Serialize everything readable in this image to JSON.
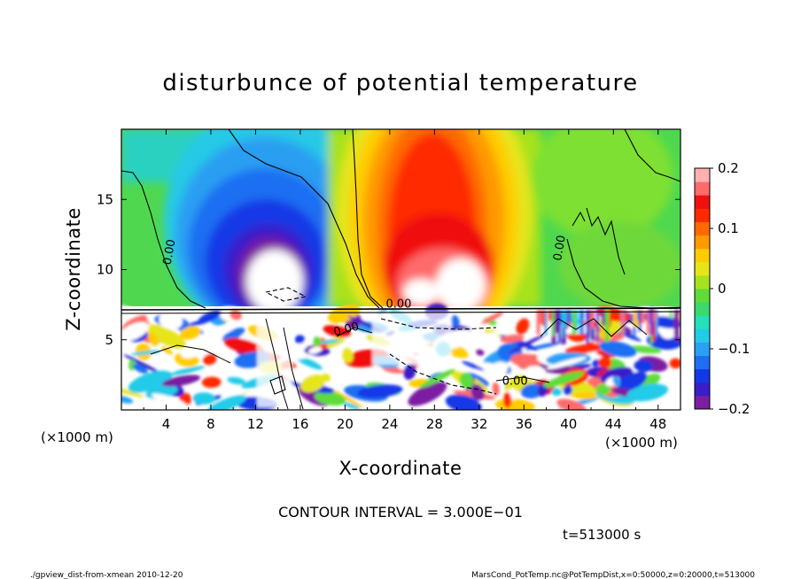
{
  "chart_data": {
    "type": "heatmap",
    "title": "disturbunce of potential temperature",
    "xlabel": "X-coordinate",
    "ylabel": "Z-coordinate",
    "x_unit_left": "(×1000 m)",
    "x_unit_right": "(×1000 m)",
    "xlim": [
      0,
      50
    ],
    "ylim": [
      0,
      20
    ],
    "x_ticks": [
      4,
      8,
      12,
      16,
      20,
      24,
      28,
      32,
      36,
      40,
      44,
      48
    ],
    "y_ticks": [
      5,
      10,
      15
    ],
    "colorbar": {
      "ticks": [
        0.2,
        0.1,
        0,
        -0.1,
        -0.2
      ],
      "tick_labels": [
        "0.2",
        "0.1",
        "0",
        "−0.1",
        "−0.2"
      ],
      "range": [
        -0.2,
        0.2
      ],
      "colors": [
        "#7b1fa2",
        "#3a1ec8",
        "#1438e6",
        "#1f6ef2",
        "#2aa0f5",
        "#22cbe8",
        "#23e0b8",
        "#3bd96a",
        "#5fdc3a",
        "#a7e21e",
        "#e6e51a",
        "#ffcc00",
        "#ff9a00",
        "#ff6a00",
        "#ff2a00",
        "#f01010",
        "#ff6a6a",
        "#ffb0b0"
      ]
    },
    "contour_labels": [
      {
        "text": "0.00",
        "x": 4.6,
        "z": 11.2,
        "angle": -80
      },
      {
        "text": "0.00",
        "x": 24.8,
        "z": 7.3,
        "angle": 0
      },
      {
        "text": "0.00",
        "x": 20.2,
        "z": 5.5,
        "angle": -15
      },
      {
        "text": "0.00",
        "x": 35.2,
        "z": 1.8,
        "angle": 0
      },
      {
        "text": "0.00",
        "x": 39.5,
        "z": 11.5,
        "angle": -80
      }
    ],
    "time_label": "t=513000 s"
  },
  "contour_interval": "CONTOUR INTERVAL = 3.000E−01",
  "footer": {
    "left": "./gpview_dist-from-xmean   2010-12-20",
    "right": "MarsCond_PotTemp.nc@PotTempDist,x=0:50000,z=0:20000,t=513000"
  }
}
